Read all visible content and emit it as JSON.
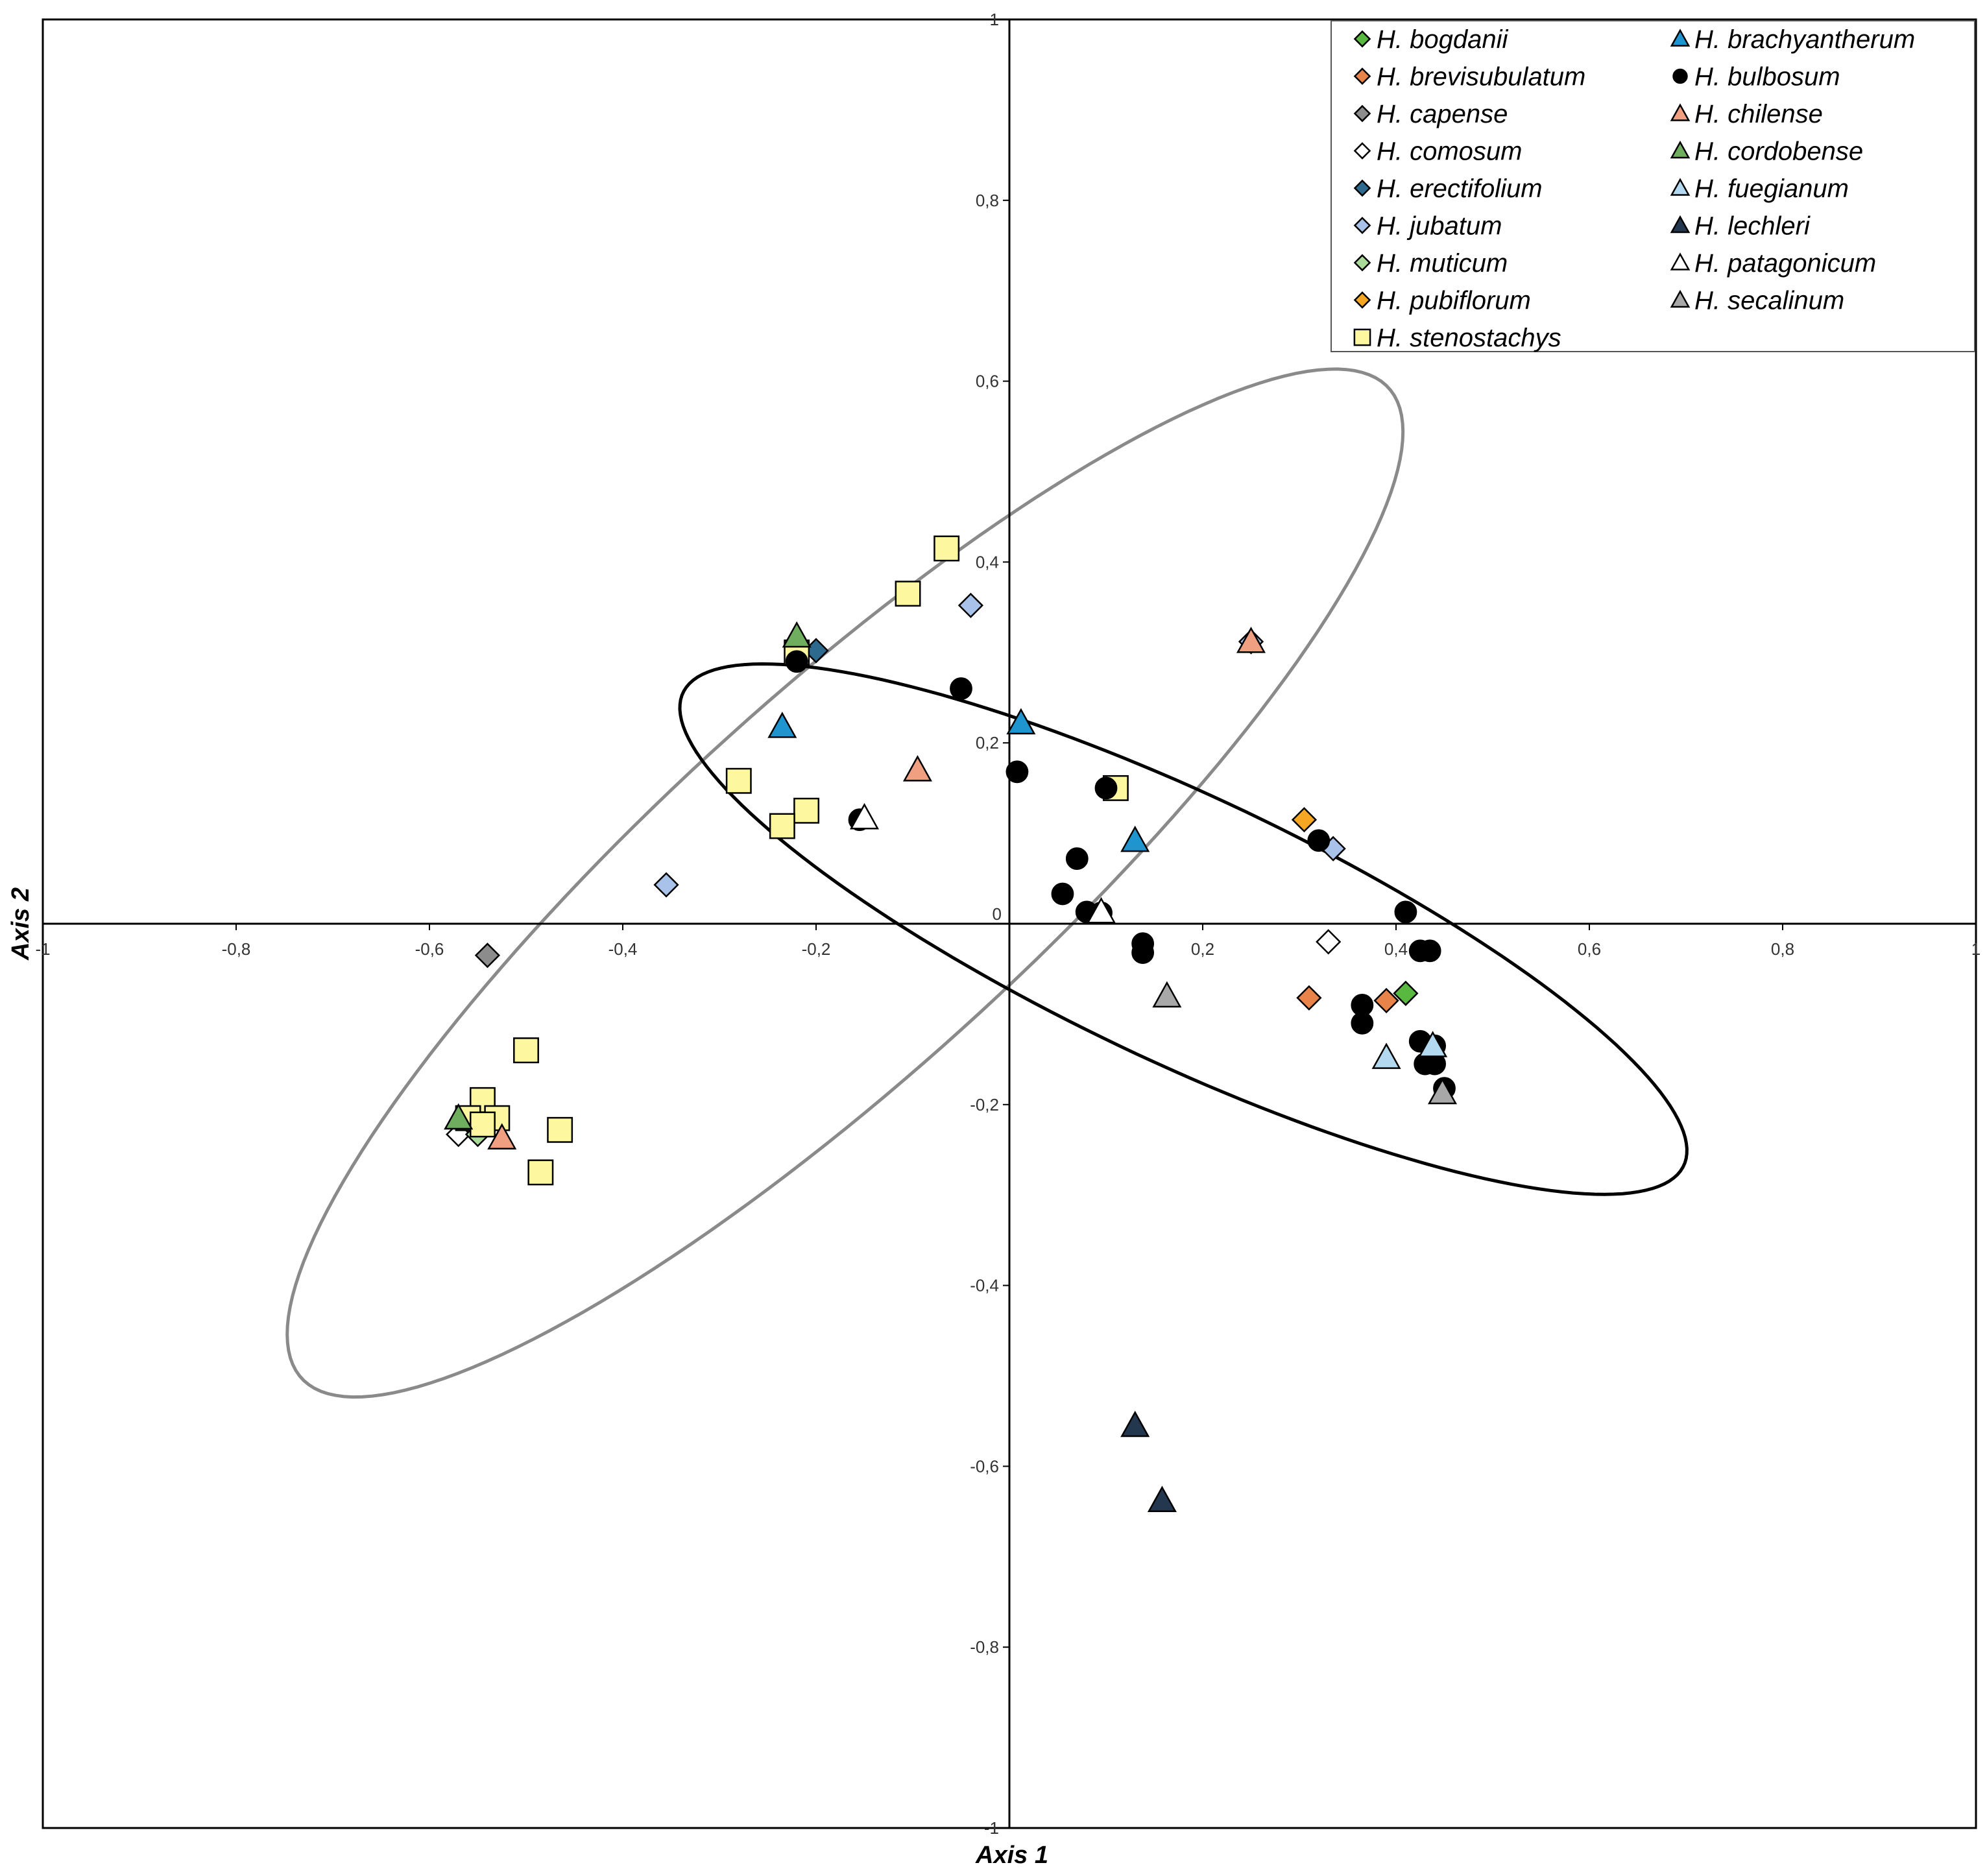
{
  "chart_data": {
    "type": "scatter",
    "title": "",
    "xlabel": "Axis 1",
    "ylabel": "Axis 2",
    "xlim": [
      -1,
      1
    ],
    "ylim": [
      -1,
      1
    ],
    "x_ticks": [
      -1,
      -0.8,
      -0.6,
      -0.4,
      -0.2,
      0,
      0.2,
      0.4,
      0.6,
      0.8,
      1
    ],
    "y_ticks": [
      -1,
      -0.8,
      -0.6,
      -0.4,
      -0.2,
      0,
      0.2,
      0.4,
      0.6,
      0.8,
      1
    ],
    "x_tick_labels": [
      "-1",
      "-0,8",
      "-0,6",
      "-0,4",
      "-0,2",
      "0",
      "0,2",
      "0,4",
      "0,6",
      "0,8",
      "1"
    ],
    "y_tick_labels": [
      "-1",
      "-0,8",
      "-0,6",
      "-0,4",
      "-0,2",
      "0",
      "0,2",
      "0,4",
      "0,6",
      "0,8",
      "1"
    ],
    "legend_position": "top-right",
    "ellipses": [
      {
        "name": "gray-ellipse",
        "color": "#8a8a8a",
        "cx": -0.17,
        "cy": 0.045,
        "theta_deg": 44.5,
        "a": 0.785,
        "b": 0.2
      },
      {
        "name": "black-ellipse",
        "color": "#000000",
        "cx": 0.18,
        "cy": -0.006,
        "theta_deg": -27,
        "a": 0.58,
        "b": 0.145
      }
    ],
    "series": [
      {
        "name": "H. bogdanii",
        "marker": "diamond",
        "color": "#58b83f",
        "points": [
          [
            0.41,
            -0.077
          ],
          [
            -0.54,
            -0.215
          ]
        ]
      },
      {
        "name": "H. brevisubulatum",
        "marker": "diamond",
        "color": "#e8834a",
        "points": [
          [
            0.31,
            -0.082
          ],
          [
            0.39,
            -0.085
          ]
        ]
      },
      {
        "name": "H. capense",
        "marker": "diamond",
        "color": "#8c8c8c",
        "points": [
          [
            -0.54,
            -0.035
          ]
        ]
      },
      {
        "name": "H. comosum",
        "marker": "diamond",
        "color": "#ffffff",
        "points": [
          [
            0.33,
            -0.02
          ],
          [
            -0.57,
            -0.233
          ]
        ]
      },
      {
        "name": "H. erectifolium",
        "marker": "diamond",
        "color": "#2e6a8e",
        "points": [
          [
            -0.2,
            0.302
          ]
        ]
      },
      {
        "name": "H. jubatum",
        "marker": "diamond",
        "color": "#a9c2ea",
        "points": [
          [
            -0.04,
            0.352
          ],
          [
            0.25,
            0.312
          ],
          [
            0.335,
            0.083
          ],
          [
            -0.355,
            0.043
          ]
        ]
      },
      {
        "name": "H. muticum",
        "marker": "diamond",
        "color": "#a8dc98",
        "points": [
          [
            -0.55,
            -0.233
          ]
        ]
      },
      {
        "name": "H. pubiflorum",
        "marker": "diamond",
        "color": "#f5a623",
        "points": [
          [
            0.305,
            0.115
          ]
        ]
      },
      {
        "name": "H. stenostachys",
        "marker": "square",
        "color": "#fdf7a0",
        "points": [
          [
            -0.065,
            0.415
          ],
          [
            -0.105,
            0.365
          ],
          [
            -0.22,
            0.3
          ],
          [
            -0.28,
            0.158
          ],
          [
            -0.21,
            0.125
          ],
          [
            -0.235,
            0.108
          ],
          [
            0.11,
            0.15
          ],
          [
            -0.5,
            -0.14
          ],
          [
            -0.545,
            -0.195
          ],
          [
            -0.56,
            -0.215
          ],
          [
            -0.53,
            -0.215
          ],
          [
            -0.545,
            -0.222
          ],
          [
            -0.465,
            -0.228
          ],
          [
            -0.485,
            -0.275
          ]
        ]
      },
      {
        "name": "H. brachyantherum",
        "marker": "triangle",
        "color": "#1f95d0",
        "points": [
          [
            -0.235,
            0.218
          ],
          [
            0.012,
            0.222
          ],
          [
            0.13,
            0.092
          ]
        ]
      },
      {
        "name": "H. bulbosum",
        "marker": "circle",
        "color": "#000000",
        "points": [
          [
            -0.22,
            0.29
          ],
          [
            -0.05,
            0.26
          ],
          [
            0.008,
            0.168
          ],
          [
            0.1,
            0.15
          ],
          [
            -0.155,
            0.115
          ],
          [
            0.07,
            0.072
          ],
          [
            0.055,
            0.033
          ],
          [
            0.08,
            0.013
          ],
          [
            0.095,
            0.012
          ],
          [
            0.32,
            0.092
          ],
          [
            0.41,
            0.013
          ],
          [
            0.138,
            -0.022
          ],
          [
            0.138,
            -0.032
          ],
          [
            0.425,
            -0.03
          ],
          [
            0.435,
            -0.03
          ],
          [
            0.365,
            -0.09
          ],
          [
            0.365,
            -0.11
          ],
          [
            0.425,
            -0.13
          ],
          [
            0.44,
            -0.135
          ],
          [
            0.43,
            -0.155
          ],
          [
            0.44,
            -0.155
          ],
          [
            0.45,
            -0.182
          ]
        ]
      },
      {
        "name": "H. chilense",
        "marker": "triangle",
        "color": "#f0a080",
        "points": [
          [
            -0.095,
            0.17
          ],
          [
            0.25,
            0.312
          ],
          [
            -0.525,
            -0.237
          ]
        ]
      },
      {
        "name": "H. cordobense",
        "marker": "triangle",
        "color": "#6fae5f",
        "points": [
          [
            -0.22,
            0.318
          ],
          [
            -0.57,
            -0.215
          ]
        ]
      },
      {
        "name": "H. fuegianum",
        "marker": "triangle",
        "color": "#b3d9f0",
        "points": [
          [
            0.39,
            -0.148
          ],
          [
            0.438,
            -0.135
          ]
        ]
      },
      {
        "name": "H. lechleri",
        "marker": "triangle",
        "color": "#23384f",
        "points": [
          [
            0.13,
            -0.555
          ],
          [
            0.158,
            -0.638
          ]
        ]
      },
      {
        "name": "H. patagonicum",
        "marker": "triangle",
        "color": "#ffffff",
        "points": [
          [
            -0.15,
            0.117
          ],
          [
            0.095,
            0.013
          ]
        ]
      },
      {
        "name": "H. secalinum",
        "marker": "triangle",
        "color": "#a8a8a8",
        "points": [
          [
            0.163,
            -0.08
          ],
          [
            0.448,
            -0.187
          ]
        ]
      }
    ]
  }
}
